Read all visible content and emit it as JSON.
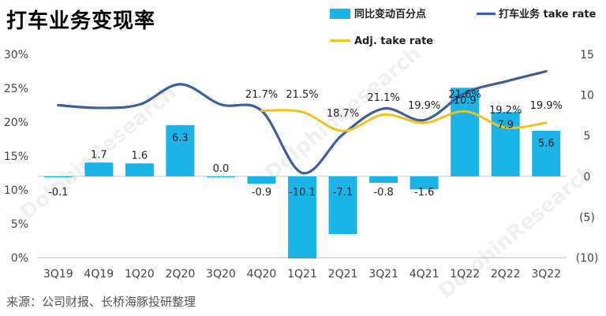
{
  "title": "打车业务变现率",
  "source": "来源：公司财报、长桥海豚投研整理",
  "watermark": "DolphinResearch",
  "colors": {
    "bar": "#1ab4e8",
    "take_rate": "#3d5f9e",
    "adj_take_rate": "#f2c11b"
  },
  "chart_data": {
    "type": "bar",
    "categories": [
      "3Q19",
      "4Q19",
      "1Q20",
      "2Q20",
      "3Q20",
      "4Q20",
      "1Q21",
      "2Q21",
      "3Q21",
      "4Q21",
      "1Q22",
      "2Q22",
      "3Q22"
    ],
    "series": [
      {
        "name": "同比变动百分点",
        "type": "bar",
        "axis": "right",
        "values": [
          -0.1,
          1.7,
          1.6,
          6.3,
          0.0,
          -0.9,
          -10.1,
          -7.1,
          -0.8,
          -1.6,
          10.9,
          7.9,
          5.6
        ],
        "labels": [
          "-0.1",
          "1.7",
          "1.6",
          "6.3",
          "0.0",
          "-0.9",
          "-10.1",
          "-7.1",
          "-0.8",
          "-1.6",
          "10.9",
          "7.9",
          "5.6"
        ]
      },
      {
        "name": "打车业务 take rate",
        "type": "line",
        "axis": "left",
        "values": [
          22.5,
          22.1,
          22.6,
          25.6,
          22.6,
          21.7,
          12.5,
          18.2,
          22.0,
          20.3,
          24.3,
          26.0,
          27.5
        ]
      },
      {
        "name": "Adj. take rate",
        "type": "line",
        "axis": "left",
        "values": [
          null,
          null,
          null,
          null,
          null,
          21.7,
          21.5,
          18.7,
          21.1,
          19.9,
          21.6,
          19.2,
          19.9
        ],
        "labels": [
          null,
          null,
          null,
          null,
          null,
          "21.7%",
          "21.5%",
          "18.7%",
          "21.1%",
          "19.9%",
          "21.6%",
          "19.2%",
          "19.9%"
        ]
      }
    ],
    "y_left": {
      "ticks": [
        "0%",
        "5%",
        "10%",
        "15%",
        "20%",
        "25%",
        "30%"
      ],
      "range": [
        0,
        30
      ]
    },
    "y_right": {
      "ticks": [
        "(10)",
        "(5)",
        "0",
        "5",
        "10",
        "15"
      ],
      "range": [
        -10,
        15
      ]
    },
    "legend": [
      {
        "label": "同比变动百分点",
        "kind": "bar"
      },
      {
        "label": "打车业务 take rate",
        "kind": "line"
      },
      {
        "label": "Adj. take rate",
        "kind": "line"
      }
    ],
    "legend_position": "top-right"
  }
}
